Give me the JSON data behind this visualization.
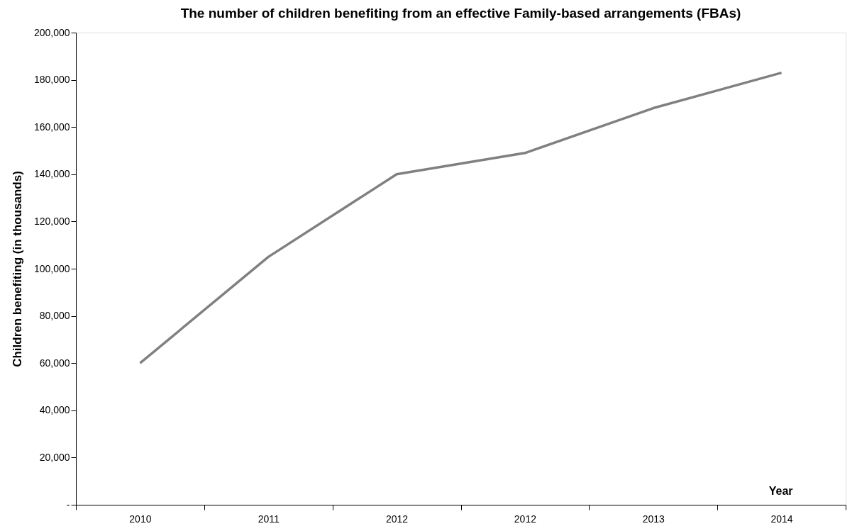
{
  "chart_data": {
    "type": "line",
    "title": "The number of children benefiting from an effective Family-based arrangements (FBAs)",
    "xlabel": "Year",
    "ylabel": "Children benefiting (in thousands)",
    "categories": [
      "2010",
      "2011",
      "2012",
      "2012",
      "2013",
      "2014"
    ],
    "series": [
      {
        "color": "#808080",
        "values": [
          60000,
          105000,
          140000,
          149000,
          168000,
          183000
        ]
      }
    ],
    "ylim": [
      0,
      200000
    ],
    "yticks": [
      {
        "value": 0,
        "label": "-"
      },
      {
        "value": 20000,
        "label": "20,000"
      },
      {
        "value": 40000,
        "label": "40,000"
      },
      {
        "value": 60000,
        "label": "60,000"
      },
      {
        "value": 80000,
        "label": "80,000"
      },
      {
        "value": 100000,
        "label": "100,000"
      },
      {
        "value": 120000,
        "label": "120,000"
      },
      {
        "value": 140000,
        "label": "140,000"
      },
      {
        "value": 160000,
        "label": "160,000"
      },
      {
        "value": 180000,
        "label": "180,000"
      },
      {
        "value": 200000,
        "label": "200,000"
      }
    ],
    "grid": false,
    "marker": "none",
    "line_style": "solid"
  }
}
